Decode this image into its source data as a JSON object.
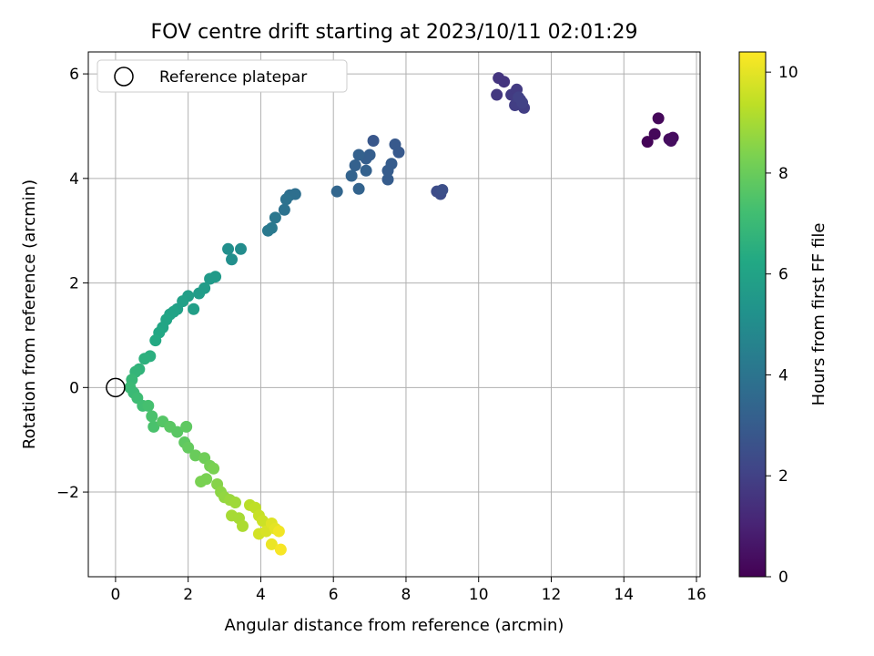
{
  "chart_data": {
    "type": "scatter",
    "title": "FOV centre drift starting at 2023/10/11 02:01:29",
    "xlabel": "Angular distance from reference (arcmin)",
    "ylabel": "Rotation from reference (arcmin)",
    "xlim": [
      -0.75,
      16.1
    ],
    "ylim": [
      -3.62,
      6.42
    ],
    "xticks": [
      0,
      2,
      4,
      6,
      8,
      10,
      12,
      14,
      16
    ],
    "yticks": [
      -2,
      0,
      2,
      4,
      6
    ],
    "grid": true,
    "legend": {
      "position": "top-left",
      "entries": [
        "Reference platepar"
      ]
    },
    "reference_point": {
      "label": "Reference platepar",
      "x": 0,
      "y": 0
    },
    "colorbar": {
      "label": "Hours from first FF file",
      "range": [
        0,
        10.4
      ],
      "ticks": [
        0,
        2,
        4,
        6,
        8,
        10
      ],
      "colormap": "viridis"
    },
    "series": [
      {
        "points": [
          [
            14.65,
            4.7,
            0.1
          ],
          [
            14.85,
            4.85,
            0.2
          ],
          [
            14.95,
            5.15,
            0.2
          ],
          [
            15.25,
            4.75,
            0.3
          ],
          [
            15.35,
            4.78,
            0.3
          ],
          [
            15.3,
            4.72,
            0.35
          ],
          [
            10.55,
            5.92,
            1.6
          ],
          [
            10.7,
            5.85,
            1.6
          ],
          [
            10.5,
            5.6,
            1.7
          ],
          [
            10.9,
            5.6,
            1.8
          ],
          [
            11.05,
            5.7,
            1.8
          ],
          [
            11.0,
            5.4,
            1.9
          ],
          [
            11.15,
            5.5,
            1.9
          ],
          [
            11.25,
            5.35,
            1.9
          ],
          [
            11.2,
            5.45,
            2.0
          ],
          [
            11.1,
            5.55,
            2.0
          ],
          [
            8.85,
            3.75,
            2.4
          ],
          [
            8.95,
            3.7,
            2.4
          ],
          [
            9.0,
            3.78,
            2.5
          ],
          [
            7.1,
            4.72,
            2.8
          ],
          [
            7.7,
            4.65,
            2.9
          ],
          [
            7.8,
            4.5,
            2.9
          ],
          [
            7.6,
            4.28,
            3.0
          ],
          [
            7.5,
            4.15,
            3.0
          ],
          [
            7.5,
            3.98,
            3.0
          ],
          [
            7.0,
            4.45,
            3.1
          ],
          [
            6.9,
            4.38,
            3.1
          ],
          [
            6.7,
            4.45,
            3.2
          ],
          [
            6.9,
            4.15,
            3.2
          ],
          [
            6.6,
            4.25,
            3.2
          ],
          [
            6.5,
            4.05,
            3.3
          ],
          [
            6.7,
            3.8,
            3.3
          ],
          [
            6.1,
            3.75,
            3.4
          ],
          [
            4.95,
            3.7,
            3.8
          ],
          [
            4.8,
            3.68,
            3.8
          ],
          [
            4.7,
            3.6,
            3.9
          ],
          [
            4.65,
            3.4,
            3.9
          ],
          [
            4.4,
            3.25,
            4.1
          ],
          [
            4.3,
            3.05,
            4.2
          ],
          [
            4.2,
            3.0,
            4.2
          ],
          [
            3.45,
            2.65,
            5.0
          ],
          [
            3.1,
            2.65,
            5.1
          ],
          [
            3.2,
            2.45,
            5.1
          ],
          [
            2.75,
            2.12,
            5.6
          ],
          [
            2.6,
            2.08,
            5.6
          ],
          [
            2.45,
            1.9,
            5.7
          ],
          [
            2.3,
            1.8,
            5.7
          ],
          [
            2.15,
            1.5,
            5.8
          ],
          [
            2.0,
            1.75,
            5.8
          ],
          [
            1.85,
            1.65,
            5.9
          ],
          [
            1.7,
            1.5,
            5.9
          ],
          [
            1.6,
            1.45,
            6.0
          ],
          [
            1.5,
            1.4,
            6.0
          ],
          [
            1.4,
            1.3,
            6.1
          ],
          [
            1.3,
            1.15,
            6.1
          ],
          [
            1.2,
            1.05,
            6.2
          ],
          [
            1.1,
            0.9,
            6.3
          ],
          [
            0.95,
            0.6,
            6.5
          ],
          [
            0.8,
            0.55,
            6.6
          ],
          [
            0.65,
            0.35,
            6.7
          ],
          [
            0.55,
            0.3,
            6.8
          ],
          [
            0.45,
            0.15,
            6.9
          ],
          [
            0.4,
            0.0,
            7.0
          ],
          [
            0.5,
            -0.1,
            7.0
          ],
          [
            0.6,
            -0.2,
            7.1
          ],
          [
            0.75,
            -0.35,
            7.2
          ],
          [
            0.9,
            -0.35,
            7.3
          ],
          [
            1.0,
            -0.55,
            7.4
          ],
          [
            1.05,
            -0.75,
            7.4
          ],
          [
            1.3,
            -0.65,
            7.6
          ],
          [
            1.5,
            -0.75,
            7.7
          ],
          [
            1.7,
            -0.85,
            7.7
          ],
          [
            1.95,
            -0.75,
            7.8
          ],
          [
            1.9,
            -1.05,
            7.8
          ],
          [
            2.0,
            -1.15,
            7.9
          ],
          [
            2.2,
            -1.3,
            8.0
          ],
          [
            2.45,
            -1.35,
            8.1
          ],
          [
            2.6,
            -1.5,
            8.2
          ],
          [
            2.7,
            -1.55,
            8.3
          ],
          [
            2.5,
            -1.75,
            8.3
          ],
          [
            2.35,
            -1.8,
            8.3
          ],
          [
            2.8,
            -1.85,
            8.5
          ],
          [
            2.9,
            -2.0,
            8.6
          ],
          [
            3.0,
            -2.1,
            8.7
          ],
          [
            3.15,
            -2.15,
            8.8
          ],
          [
            3.3,
            -2.2,
            8.9
          ],
          [
            3.2,
            -2.45,
            9.0
          ],
          [
            3.4,
            -2.5,
            9.0
          ],
          [
            3.5,
            -2.65,
            9.1
          ],
          [
            3.7,
            -2.25,
            9.3
          ],
          [
            3.85,
            -2.3,
            9.4
          ],
          [
            3.95,
            -2.45,
            9.5
          ],
          [
            4.05,
            -2.55,
            9.6
          ],
          [
            3.95,
            -2.8,
            9.7
          ],
          [
            4.15,
            -2.75,
            9.8
          ],
          [
            4.3,
            -2.6,
            9.9
          ],
          [
            4.4,
            -2.7,
            10.0
          ],
          [
            4.3,
            -3.0,
            10.1
          ],
          [
            4.5,
            -2.75,
            10.2
          ],
          [
            4.55,
            -3.1,
            10.3
          ]
        ]
      }
    ]
  }
}
